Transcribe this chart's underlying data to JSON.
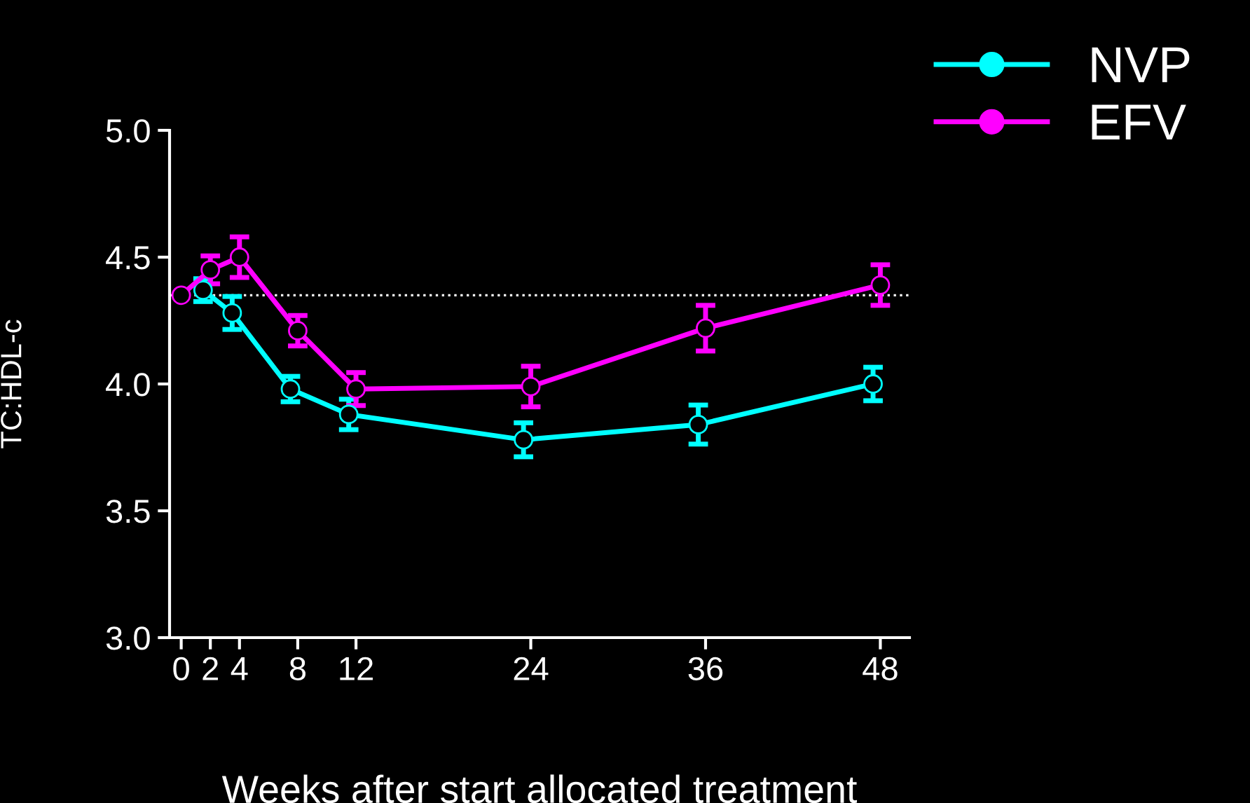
{
  "chart_data": {
    "type": "line",
    "xlabel": "Weeks after start allocated treatment",
    "ylabel": "TC:HDL-c",
    "xlim": [
      -0.8,
      50
    ],
    "xticks": [
      0,
      2,
      4,
      8,
      12,
      24,
      36,
      48
    ],
    "ylim": [
      3.0,
      5.0
    ],
    "yticks": [
      {
        "value": 3.0,
        "label": "3.0"
      },
      {
        "value": 3.5,
        "label": "3.5"
      },
      {
        "value": 4.0,
        "label": "4.0"
      },
      {
        "value": 4.5,
        "label": "4.5"
      },
      {
        "value": 5.0,
        "label": "5.0"
      }
    ],
    "series": [
      {
        "name": "NVP",
        "color": "#00ffff",
        "x": [
          1.5,
          3.5,
          7.5,
          11.5,
          23.5,
          35.5,
          47.5
        ],
        "values": [
          4.37,
          4.28,
          3.98,
          3.88,
          3.78,
          3.84,
          4.0
        ],
        "errors": [
          0.045,
          0.065,
          0.05,
          0.06,
          0.067,
          0.077,
          0.066
        ]
      },
      {
        "name": "EFV",
        "color": "#ff00ff",
        "x": [
          0,
          2,
          4,
          8,
          12,
          24,
          36,
          48
        ],
        "values": [
          4.35,
          4.45,
          4.5,
          4.21,
          3.98,
          3.99,
          4.22,
          4.39
        ],
        "errors": [
          null,
          0.055,
          0.08,
          0.06,
          0.065,
          0.08,
          0.09,
          0.08
        ]
      }
    ],
    "ref_lines": [
      {
        "axis": "y",
        "value": 4.35,
        "color": "#ffffff",
        "line_style": "dotted"
      }
    ],
    "marker": "circle",
    "line_style": "solid",
    "grid": false,
    "legend": "top right"
  }
}
